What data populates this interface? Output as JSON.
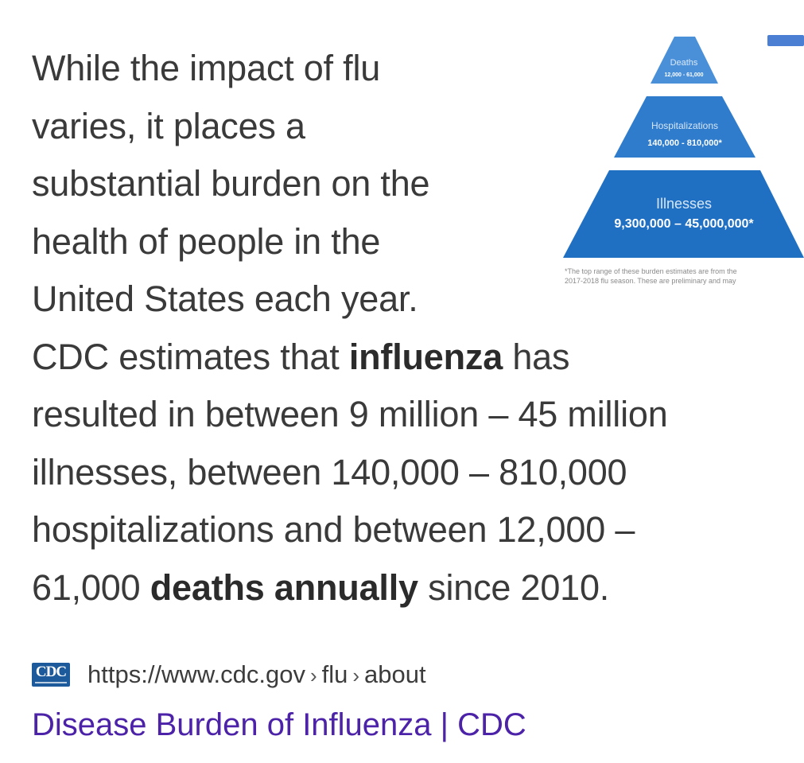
{
  "snippet": {
    "line1": "While the impact of flu",
    "line2": "varies, it places a",
    "line3": "substantial burden on the",
    "line4": "health of people in the",
    "line5": "United States each year.",
    "line6_pre": "CDC estimates that ",
    "line6_bold": "influenza",
    "line6_post": " has",
    "line7": "resulted in between 9 million – 45 million",
    "line8": "illnesses, between 140,000 – 810,000",
    "line9": "hospitalizations and between 12,000 –",
    "line10_pre": "61,000 ",
    "line10_bold": "deaths annually",
    "line10_post": " since 2010."
  },
  "thumbnail": {
    "tier_top_label": "Deaths",
    "tier_top_value": "12,000 - 61,000",
    "tier_mid_label": "Hospitalizations",
    "tier_mid_value": "140,000 - 810,000*",
    "tier_bottom_label": "Illnesses",
    "tier_bottom_value": "9,300,000 – 45,000,000*",
    "footnote_line1": "*The top range of these burden estimates are from the",
    "footnote_line2": "2017-2018 flu season. These are preliminary and may",
    "colors": {
      "tier_top": "#4a90d9",
      "tier_mid": "#2f7ccc",
      "tier_bottom": "#1f6fc2",
      "corner_tab": "#4a7fd4"
    }
  },
  "source": {
    "logo_text": "CDC",
    "url_base": "https://www.cdc.gov",
    "crumb1": "flu",
    "crumb2": "about",
    "separator": "›"
  },
  "result": {
    "title": "Disease Burden of Influenza | CDC",
    "title_color": "#4b22a8"
  }
}
